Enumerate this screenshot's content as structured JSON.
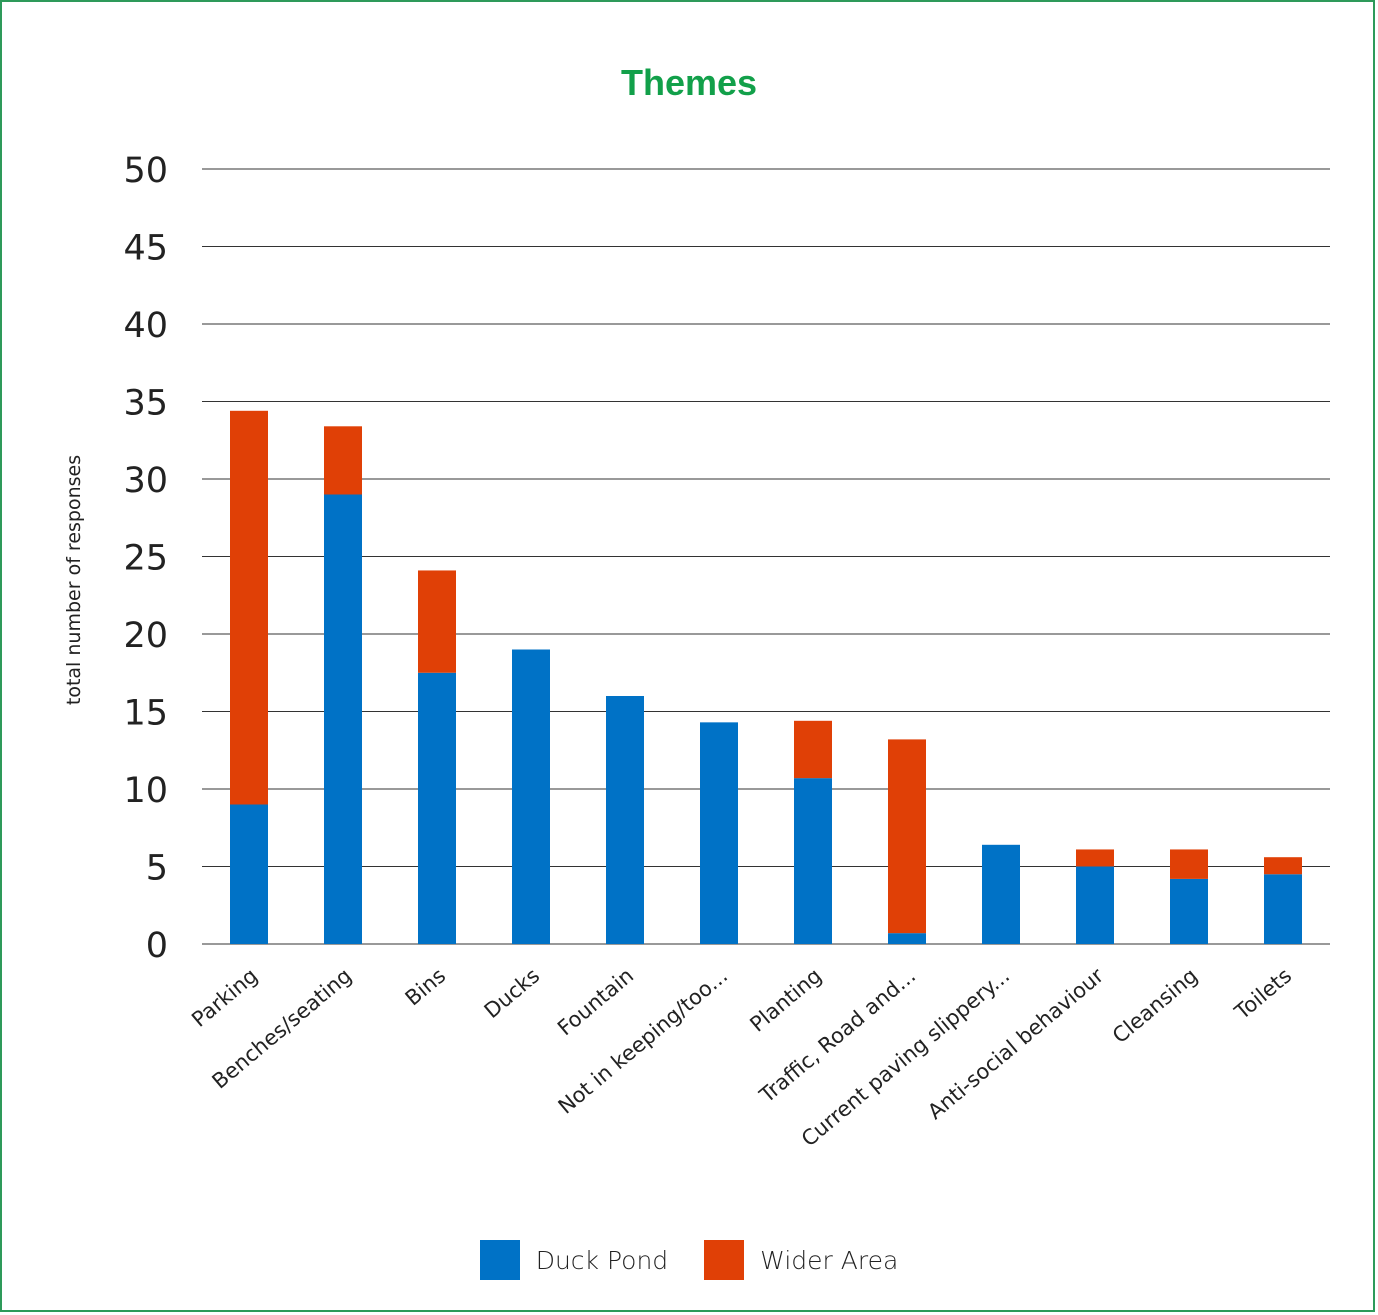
{
  "chart_data": {
    "type": "bar",
    "stacked": true,
    "title": "Themes",
    "xlabel": "",
    "ylabel": "total number of responses",
    "ylim": [
      0,
      50
    ],
    "yticks": [
      0,
      5,
      10,
      15,
      20,
      25,
      30,
      35,
      40,
      45,
      50
    ],
    "grid": true,
    "legend_position": "bottom",
    "categories": [
      "Parking",
      "Benches/seating",
      "Bins",
      "Ducks",
      "Fountain",
      "Not in keeping/too...",
      "Planting",
      "Traffic, Road and...",
      "Current paving slippery...",
      "Anti-social behaviour",
      "Cleansing",
      "Toilets"
    ],
    "series": [
      {
        "name": "Duck Pond",
        "color": "#0072c6",
        "values": [
          9,
          29,
          17.5,
          19,
          16,
          14.3,
          10.7,
          0.7,
          6.4,
          5,
          4.2,
          4.5
        ]
      },
      {
        "name": "Wider Area",
        "color": "#e04006",
        "values": [
          25.4,
          4.4,
          6.6,
          0,
          0,
          0,
          3.7,
          12.5,
          0,
          1.1,
          1.9,
          1.1
        ]
      }
    ]
  }
}
